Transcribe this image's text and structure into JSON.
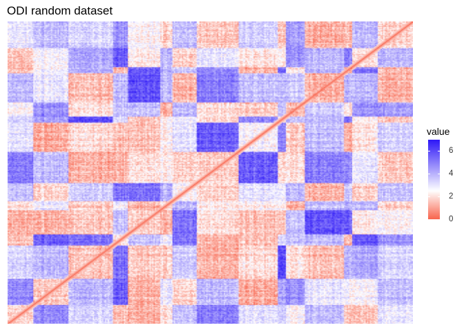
{
  "chart_data": {
    "type": "heatmap",
    "title": "ODI random dataset",
    "xlabel": "",
    "ylabel": "",
    "description_rows": 300,
    "value_range": [
      0,
      7
    ],
    "diagonal_value": 0,
    "legend": {
      "title": "value",
      "ticks": [
        "0",
        "2",
        "4",
        "6"
      ],
      "tick_values": [
        0,
        2,
        4,
        6
      ],
      "placement": "right"
    },
    "color_scale": {
      "low": "#f8664f",
      "mid": "#ffffff",
      "high": "#2f19f7",
      "midpoint": 2.5
    },
    "grid": false
  }
}
